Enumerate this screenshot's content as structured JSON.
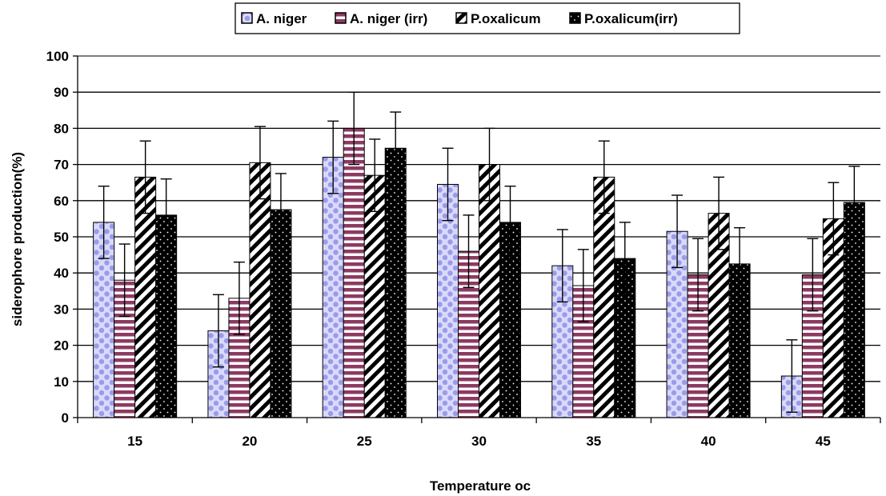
{
  "chart_data": {
    "type": "bar",
    "title": "",
    "xlabel": "Temperature oc",
    "ylabel": "siderophore production(%)",
    "categories": [
      "15",
      "20",
      "25",
      "30",
      "35",
      "40",
      "45"
    ],
    "ylim": [
      0,
      100
    ],
    "yticks": [
      0,
      10,
      20,
      30,
      40,
      50,
      60,
      70,
      80,
      90,
      100
    ],
    "grid": true,
    "legend_position": "top",
    "series": [
      {
        "name": "A. niger",
        "pattern": "dots",
        "color": "#c9c9f5",
        "values": [
          54,
          24,
          72,
          64.5,
          42,
          51.5,
          11.5
        ],
        "errors": [
          10,
          10,
          10,
          10,
          10,
          10,
          10
        ]
      },
      {
        "name": "A. niger (irr)",
        "pattern": "hstripes",
        "color": "#8c3a62",
        "values": [
          38,
          33,
          80,
          46,
          36.5,
          39.5,
          39.5
        ],
        "errors": [
          10,
          10,
          10,
          10,
          10,
          10,
          10
        ]
      },
      {
        "name": "P.oxalicum",
        "pattern": "diagonal",
        "color": "#000000",
        "values": [
          66.5,
          70.5,
          67,
          70,
          66.5,
          56.5,
          55
        ],
        "errors": [
          10,
          10,
          10,
          10,
          10,
          10,
          10
        ]
      },
      {
        "name": "P.oxalicum(irr)",
        "pattern": "blackdots",
        "color": "#000000",
        "values": [
          56,
          57.5,
          74.5,
          54,
          44,
          42.5,
          59.5
        ],
        "errors": [
          10,
          10,
          10,
          10,
          10,
          10,
          10
        ]
      }
    ]
  }
}
